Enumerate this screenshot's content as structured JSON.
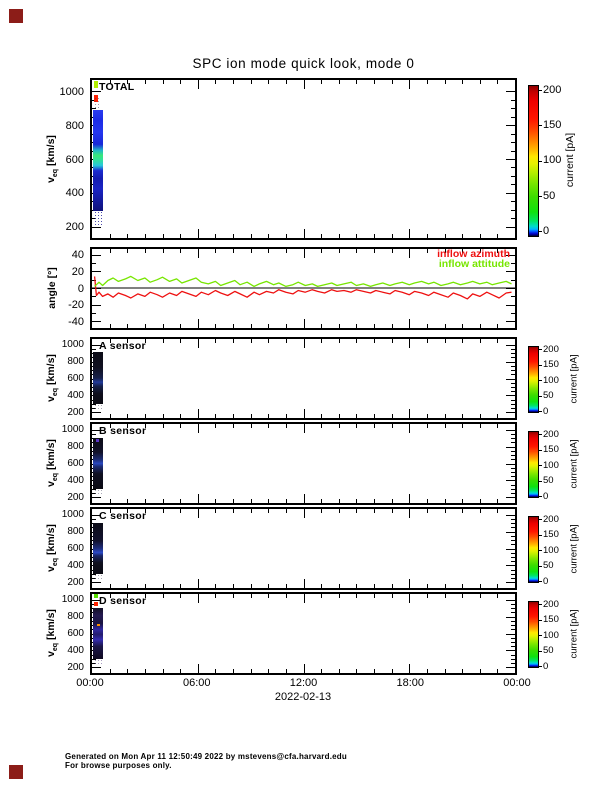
{
  "decorations": {
    "corner_mark_color": "#8c1d18"
  },
  "footer": {
    "line1": "Generated on Mon Apr 11 12:50:49 2022 by mstevens@cfa.harvard.edu",
    "line2": "For browse purposes only."
  },
  "chart_data": {
    "type": "mixed",
    "title": "SPC ion mode quick look, mode 0",
    "x": {
      "label_ticks": [
        "00:00",
        "06:00",
        "12:00",
        "18:00",
        "00:00"
      ],
      "hours": [
        0,
        6,
        12,
        18,
        24
      ],
      "minor_tick_every_hours": 1,
      "date": "2022-02-13",
      "range_hours": [
        0,
        24
      ]
    },
    "colorbar": {
      "label": "current [pA]",
      "ticks": [
        200,
        150,
        100,
        50,
        0
      ],
      "range": [
        0,
        200
      ],
      "stops": [
        [
          0.0,
          "#8f0000"
        ],
        [
          0.04,
          "#c40000"
        ],
        [
          0.1,
          "#ee0000"
        ],
        [
          0.22,
          "#ff1500"
        ],
        [
          0.3,
          "#ff4a00"
        ],
        [
          0.36,
          "#ff7e00"
        ],
        [
          0.42,
          "#ffb400"
        ],
        [
          0.47,
          "#ffe800"
        ],
        [
          0.52,
          "#e6f200"
        ],
        [
          0.58,
          "#b4ee00"
        ],
        [
          0.65,
          "#78e600"
        ],
        [
          0.74,
          "#3cdc00"
        ],
        [
          0.84,
          "#0ee20e"
        ],
        [
          0.9,
          "#00e463"
        ],
        [
          0.935,
          "#00dcc8"
        ],
        [
          0.955,
          "#00b4ff"
        ],
        [
          0.97,
          "#0050ff"
        ],
        [
          0.985,
          "#0000c8"
        ],
        [
          1.0,
          "#000032"
        ]
      ]
    },
    "velocity_axis": {
      "ylabel_pre": "v",
      "ylabel_sub": "eq",
      "ylabel_post": " [km/s]",
      "yticks": [
        1000,
        800,
        600,
        400,
        200
      ],
      "minor_tick_every": 50,
      "range": [
        200,
        1000
      ]
    },
    "velocity_panels": [
      {
        "label": "TOTAL",
        "type": "heatmap",
        "stripe": {
          "h0": 0.06,
          "h1": 0.62,
          "v_top": 888,
          "v_bot": 292,
          "stops": [
            [
              0,
              "#2a3cf0"
            ],
            [
              0.1,
              "#1c2ce6"
            ],
            [
              0.22,
              "#2436ee"
            ],
            [
              0.34,
              "#1828d8"
            ],
            [
              0.4,
              "#20b8c8"
            ],
            [
              0.45,
              "#38e87a"
            ],
            [
              0.5,
              "#30dfa0"
            ],
            [
              0.55,
              "#28c8dc"
            ],
            [
              0.6,
              "#1c2cd0"
            ],
            [
              0.68,
              "#141cb0"
            ],
            [
              0.78,
              "#1a24c4"
            ],
            [
              0.9,
              "#141a9c"
            ],
            [
              1,
              "#10127a"
            ]
          ]
        },
        "marks": [
          {
            "h0": 0.12,
            "h1": 0.35,
            "v1": 1080,
            "v2": 1022,
            "color": "#b2ee00"
          },
          {
            "h0": 0.12,
            "h1": 0.35,
            "v1": 978,
            "v2": 936,
            "color": "#ff2000"
          }
        ],
        "speckles": [
          {
            "h0": 0.12,
            "h1": 0.62,
            "v1": 292,
            "v2": 205,
            "color": "rgba(45,45,160,0.85)"
          },
          {
            "h0": 0.14,
            "h1": 0.45,
            "v1": 965,
            "v2": 895,
            "color": "rgba(60,60,90,0.5)"
          }
        ]
      },
      {
        "label": "A sensor",
        "type": "heatmap",
        "stripe": {
          "h0": 0.06,
          "h1": 0.62,
          "v_top": 908,
          "v_bot": 298,
          "stops": [
            [
              0,
              "#0c0c16"
            ],
            [
              0.3,
              "#101020"
            ],
            [
              0.5,
              "#16204a"
            ],
            [
              0.58,
              "#223a9a"
            ],
            [
              0.66,
              "#16204a"
            ],
            [
              0.8,
              "#0e0e1c"
            ],
            [
              1,
              "#0a0a12"
            ]
          ]
        },
        "marks": [],
        "speckles": [
          {
            "h0": 0.12,
            "h1": 0.6,
            "v1": 298,
            "v2": 215,
            "color": "rgba(100,100,125,0.55)"
          }
        ]
      },
      {
        "label": "B sensor",
        "type": "heatmap",
        "stripe": {
          "h0": 0.06,
          "h1": 0.62,
          "v_top": 905,
          "v_bot": 300,
          "stops": [
            [
              0,
              "#0c0c16"
            ],
            [
              0.28,
              "#12122a"
            ],
            [
              0.42,
              "#1c2c74"
            ],
            [
              0.5,
              "#2a48c0"
            ],
            [
              0.56,
              "#1c2c74"
            ],
            [
              0.7,
              "#101022"
            ],
            [
              1,
              "#0a0a12"
            ]
          ]
        },
        "marks": [
          {
            "h0": 0.25,
            "h1": 0.42,
            "v1": 892,
            "v2": 858,
            "color": "#5b36c8"
          }
        ],
        "speckles": [
          {
            "h0": 0.12,
            "h1": 0.6,
            "v1": 300,
            "v2": 215,
            "color": "rgba(100,100,125,0.55)"
          }
        ]
      },
      {
        "label": "C sensor",
        "type": "heatmap",
        "stripe": {
          "h0": 0.06,
          "h1": 0.62,
          "v_top": 902,
          "v_bot": 300,
          "stops": [
            [
              0,
              "#0d0d18"
            ],
            [
              0.35,
              "#12122e"
            ],
            [
              0.5,
              "#1e2e80"
            ],
            [
              0.58,
              "#2c4ac8"
            ],
            [
              0.64,
              "#1a2668"
            ],
            [
              0.78,
              "#10101e"
            ],
            [
              1,
              "#0a0a12"
            ]
          ]
        },
        "marks": [],
        "speckles": [
          {
            "h0": 0.12,
            "h1": 0.6,
            "v1": 300,
            "v2": 215,
            "color": "rgba(100,100,125,0.55)"
          }
        ]
      },
      {
        "label": "D sensor",
        "type": "heatmap",
        "stripe": {
          "h0": 0.06,
          "h1": 0.62,
          "v_top": 905,
          "v_bot": 298,
          "stops": [
            [
              0,
              "#141026"
            ],
            [
              0.15,
              "#241a52"
            ],
            [
              0.3,
              "#1a1440"
            ],
            [
              0.42,
              "#3028a0"
            ],
            [
              0.52,
              "#241c6e"
            ],
            [
              0.62,
              "#352cb0"
            ],
            [
              0.75,
              "#1c1648"
            ],
            [
              0.9,
              "#140f30"
            ],
            [
              1,
              "#0e0a20"
            ]
          ]
        },
        "marks": [
          {
            "h0": 0.12,
            "h1": 0.33,
            "v1": 1075,
            "v2": 1025,
            "color": "#55dd00"
          },
          {
            "h0": 0.12,
            "h1": 0.33,
            "v1": 970,
            "v2": 930,
            "color": "#ff2200"
          },
          {
            "h0": 0.3,
            "h1": 0.45,
            "v1": 715,
            "v2": 690,
            "color": "#ff9100"
          }
        ],
        "speckles": [
          {
            "h0": 0.12,
            "h1": 0.6,
            "v1": 298,
            "v2": 210,
            "color": "rgba(110,90,150,0.6)"
          }
        ]
      }
    ],
    "angle_panel": {
      "type": "line",
      "ylabel": "angle [°]",
      "yticks": [
        40,
        20,
        0,
        -20,
        -40
      ],
      "minor_tick_every": 10,
      "range": [
        -47,
        47
      ],
      "zero_line": true,
      "series": [
        {
          "name": "inflow azimuth",
          "color": "#ee1111",
          "x": [
            0.15,
            0.25,
            0.4,
            0.6,
            0.9,
            1.2,
            1.5,
            1.9,
            2.2,
            2.6,
            3.0,
            3.3,
            3.7,
            4.0,
            4.4,
            4.8,
            5.1,
            5.5,
            5.9,
            6.2,
            6.6,
            7.0,
            7.3,
            7.7,
            8.1,
            8.4,
            8.8,
            9.2,
            9.5,
            9.9,
            10.3,
            10.6,
            11.0,
            11.4,
            11.7,
            12.1,
            12.5,
            12.8,
            13.2,
            13.6,
            13.9,
            14.3,
            14.7,
            15.0,
            15.4,
            15.8,
            16.1,
            16.5,
            16.9,
            17.2,
            17.6,
            18.0,
            18.3,
            18.7,
            19.1,
            19.4,
            19.8,
            20.2,
            20.5,
            20.9,
            21.3,
            21.6,
            22.0,
            22.4,
            22.7,
            23.1,
            23.5,
            23.8
          ],
          "y": [
            14,
            -9,
            -5,
            -10,
            -7,
            -11,
            -6,
            -9,
            -12,
            -7,
            -10,
            -5,
            -8,
            -11,
            -6,
            -9,
            -4,
            -7,
            -10,
            -5,
            -8,
            -3,
            -6,
            -9,
            -4,
            -7,
            -11,
            -5,
            -8,
            -4,
            -6,
            -2,
            -5,
            -7,
            -3,
            -5,
            -2,
            -4,
            -6,
            -2,
            -4,
            -3,
            -5,
            -2,
            -4,
            -6,
            -3,
            -5,
            -7,
            -3,
            -5,
            -8,
            -4,
            -6,
            -9,
            -5,
            -8,
            -11,
            -6,
            -9,
            -13,
            -7,
            -10,
            -5,
            -8,
            -12,
            -6,
            -5
          ]
        },
        {
          "name": "inflow attitude",
          "color": "#77e600",
          "x": [
            0.15,
            0.25,
            0.4,
            0.6,
            0.9,
            1.2,
            1.5,
            1.9,
            2.2,
            2.6,
            3.0,
            3.3,
            3.7,
            4.0,
            4.4,
            4.8,
            5.1,
            5.5,
            5.9,
            6.2,
            6.6,
            7.0,
            7.3,
            7.7,
            8.1,
            8.4,
            8.8,
            9.2,
            9.5,
            9.9,
            10.3,
            10.6,
            11.0,
            11.4,
            11.7,
            12.1,
            12.5,
            12.8,
            13.2,
            13.6,
            13.9,
            14.3,
            14.7,
            15.0,
            15.4,
            15.8,
            16.1,
            16.5,
            16.9,
            17.2,
            17.6,
            18.0,
            18.3,
            18.7,
            19.1,
            19.4,
            19.8,
            20.2,
            20.5,
            20.9,
            21.3,
            21.6,
            22.0,
            22.4,
            22.7,
            23.1,
            23.5,
            23.8
          ],
          "y": [
            2,
            4,
            7,
            3,
            9,
            12,
            8,
            11,
            14,
            9,
            12,
            7,
            10,
            13,
            8,
            11,
            6,
            9,
            12,
            7,
            5,
            8,
            3,
            6,
            9,
            4,
            7,
            2,
            5,
            8,
            4,
            6,
            2,
            4,
            7,
            3,
            5,
            2,
            4,
            6,
            3,
            5,
            7,
            3,
            5,
            2,
            4,
            6,
            3,
            5,
            7,
            4,
            6,
            8,
            5,
            7,
            3,
            5,
            7,
            4,
            6,
            8,
            5,
            7,
            4,
            6,
            8,
            5
          ]
        }
      ]
    }
  }
}
